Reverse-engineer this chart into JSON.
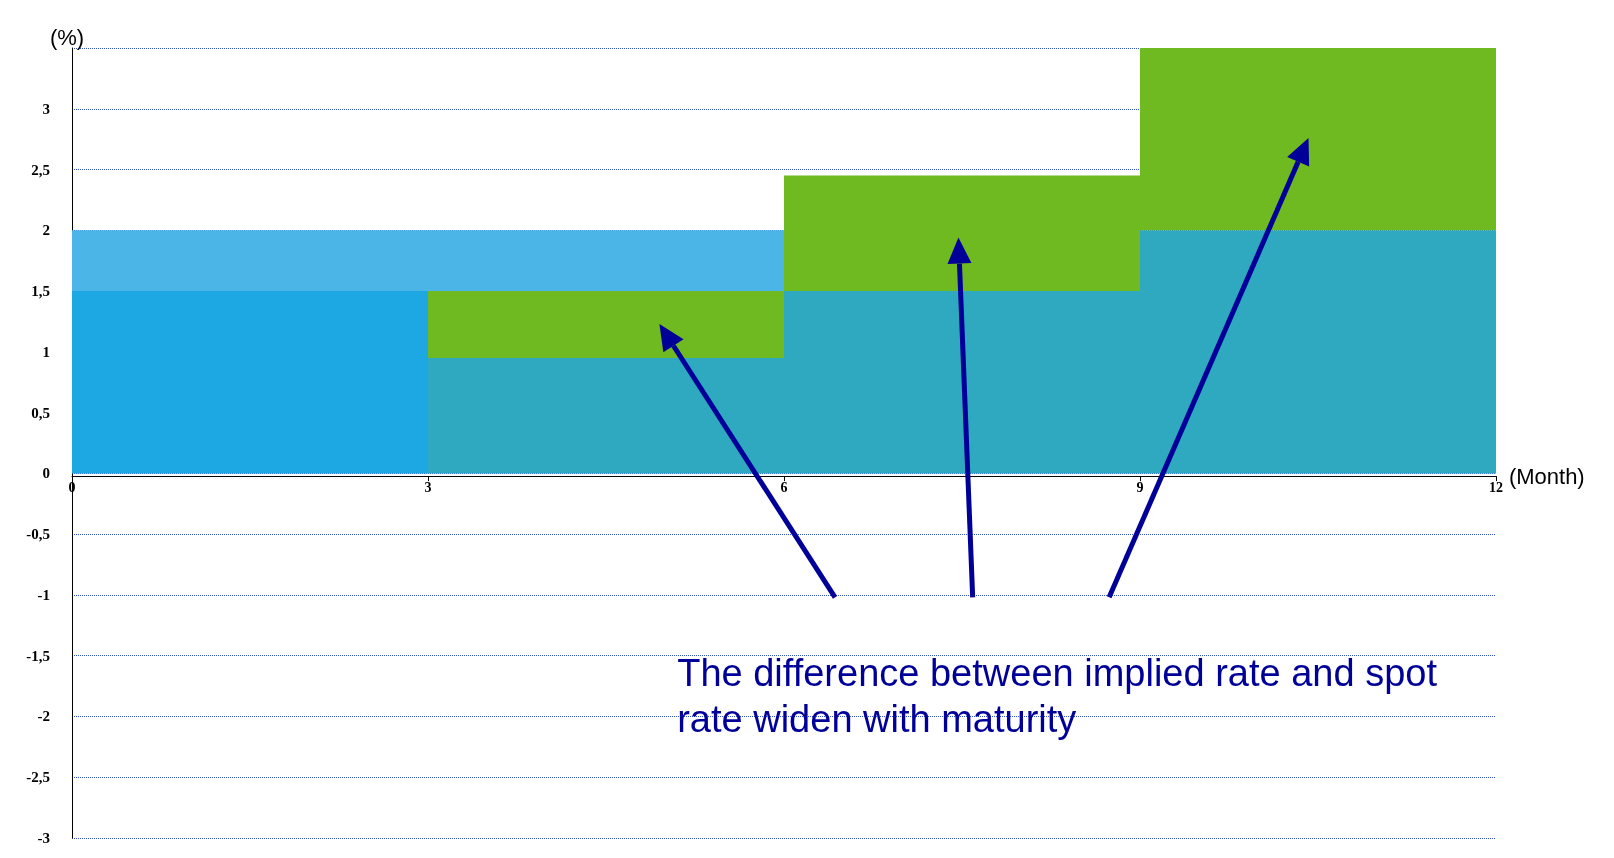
{
  "chart_data": {
    "type": "bar",
    "stacked": true,
    "xlabel": "(Month)",
    "ylabel": "(%)",
    "x": [
      1.5,
      4.5,
      7.5,
      10.5
    ],
    "series": [
      {
        "values": [
          1.5,
          null,
          null,
          null
        ],
        "color": "#1ea8e3"
      },
      {
        "values": [
          null,
          0.95,
          1.5,
          2
        ],
        "color": "#2ea9bf"
      },
      {
        "values": [
          null,
          0.55,
          0.95,
          1.5
        ],
        "color": "#6fba20"
      },
      {
        "values": [
          0.5,
          0.5,
          null,
          null
        ],
        "color": "#4bb5e8"
      }
    ],
    "xlim": [
      0,
      12
    ],
    "xticks": [
      0,
      3,
      6,
      9,
      12
    ],
    "ylim": [
      -3,
      3.5
    ],
    "yticks": [
      -3,
      {
        "value": -2.5,
        "label": "-2,5"
      },
      -2,
      {
        "value": -1.5,
        "label": "-1,5"
      },
      -1,
      {
        "value": -0.5,
        "label": "-0,5"
      },
      0,
      {
        "value": 0.5,
        "label": "0,5"
      },
      1,
      {
        "value": 1.5,
        "label": "1,5"
      },
      2,
      {
        "value": 2.5,
        "label": "2,5"
      },
      3
    ],
    "grid": "y",
    "annotations": [
      "The difference between implied rate and spot rate widen with maturity"
    ]
  }
}
